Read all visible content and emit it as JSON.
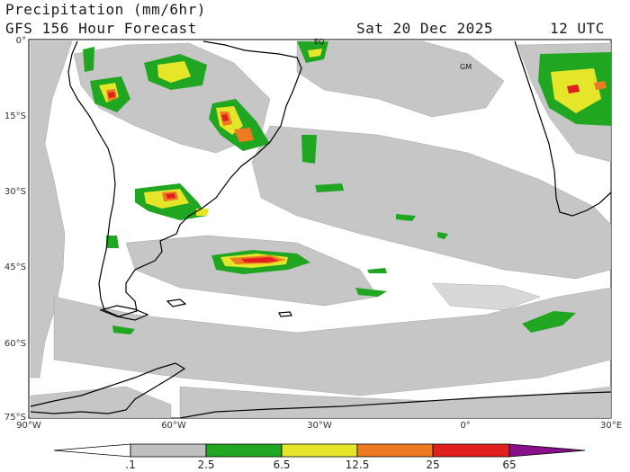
{
  "header": {
    "title_line_1": "Precipitation (mm/6hr)",
    "title_line_2": "GFS 156 Hour Forecast",
    "valid_date": "Sat 20 Dec 2025",
    "valid_time": "12 UTC"
  },
  "map": {
    "lat_labels": [
      "0°",
      "15°S",
      "30°S",
      "45°S",
      "60°S",
      "75°S"
    ],
    "lon_labels": [
      "90°W",
      "60°W",
      "30°W",
      "0°",
      "30°E"
    ],
    "markers": [
      "EQ",
      "GM"
    ],
    "colors": {
      "land_outline": "#000000",
      "rain_light": "#c0c0c0",
      "background": "#ffffff"
    }
  },
  "colorbar": {
    "labels": [
      ".1",
      "2.5",
      "6.5",
      "12.5",
      "25",
      "65"
    ],
    "colors": [
      "#ffffff",
      "#c0c0c0",
      "#21a621",
      "#e5e52a",
      "#ee7a22",
      "#e21f1f",
      "#8a0f8a"
    ]
  }
}
